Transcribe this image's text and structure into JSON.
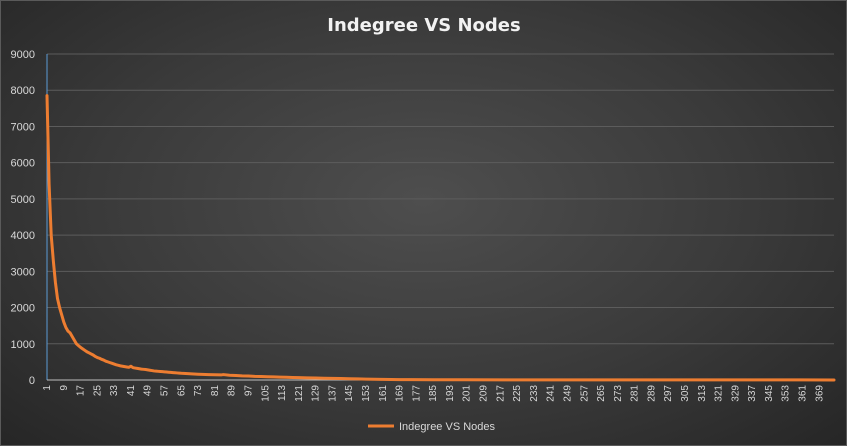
{
  "chart_data": {
    "type": "line",
    "title": "Indegree VS Nodes",
    "xlabel": "",
    "ylabel": "",
    "ylim": [
      0,
      9000
    ],
    "yticks": [
      0,
      1000,
      2000,
      3000,
      4000,
      5000,
      6000,
      7000,
      8000,
      9000
    ],
    "x_range": [
      1,
      376
    ],
    "xtick_start": 1,
    "xtick_step": 8,
    "grid": true,
    "legend": "bottom",
    "series": [
      {
        "name": "Indegree VS Nodes",
        "color": "#ed7d31",
        "points": [
          [
            1,
            7850
          ],
          [
            2,
            5400
          ],
          [
            3,
            4000
          ],
          [
            4,
            3300
          ],
          [
            5,
            2700
          ],
          [
            6,
            2250
          ],
          [
            7,
            2000
          ],
          [
            8,
            1800
          ],
          [
            9,
            1600
          ],
          [
            10,
            1450
          ],
          [
            11,
            1350
          ],
          [
            12,
            1300
          ],
          [
            13,
            1200
          ],
          [
            14,
            1100
          ],
          [
            15,
            1000
          ],
          [
            16,
            950
          ],
          [
            17,
            900
          ],
          [
            18,
            860
          ],
          [
            19,
            820
          ],
          [
            20,
            780
          ],
          [
            21,
            750
          ],
          [
            22,
            720
          ],
          [
            23,
            690
          ],
          [
            24,
            650
          ],
          [
            25,
            620
          ],
          [
            26,
            600
          ],
          [
            27,
            570
          ],
          [
            28,
            550
          ],
          [
            29,
            520
          ],
          [
            30,
            500
          ],
          [
            31,
            480
          ],
          [
            32,
            460
          ],
          [
            33,
            440
          ],
          [
            34,
            420
          ],
          [
            35,
            405
          ],
          [
            36,
            390
          ],
          [
            37,
            380
          ],
          [
            38,
            370
          ],
          [
            39,
            360
          ],
          [
            40,
            350
          ],
          [
            41,
            380
          ],
          [
            42,
            340
          ],
          [
            43,
            330
          ],
          [
            44,
            320
          ],
          [
            45,
            310
          ],
          [
            46,
            300
          ],
          [
            47,
            295
          ],
          [
            48,
            290
          ],
          [
            49,
            280
          ],
          [
            50,
            270
          ],
          [
            51,
            260
          ],
          [
            52,
            250
          ],
          [
            53,
            245
          ],
          [
            54,
            240
          ],
          [
            55,
            235
          ],
          [
            56,
            230
          ],
          [
            57,
            225
          ],
          [
            58,
            220
          ],
          [
            59,
            215
          ],
          [
            60,
            210
          ],
          [
            61,
            205
          ],
          [
            62,
            200
          ],
          [
            63,
            195
          ],
          [
            64,
            190
          ],
          [
            65,
            185
          ],
          [
            67,
            178
          ],
          [
            70,
            170
          ],
          [
            73,
            160
          ],
          [
            75,
            155
          ],
          [
            78,
            150
          ],
          [
            81,
            145
          ],
          [
            84,
            140
          ],
          [
            85,
            150
          ],
          [
            88,
            130
          ],
          [
            91,
            125
          ],
          [
            94,
            115
          ],
          [
            97,
            110
          ],
          [
            100,
            100
          ],
          [
            103,
            95
          ],
          [
            106,
            90
          ],
          [
            109,
            85
          ],
          [
            112,
            80
          ],
          [
            115,
            75
          ],
          [
            118,
            70
          ],
          [
            121,
            65
          ],
          [
            125,
            60
          ],
          [
            129,
            55
          ],
          [
            133,
            50
          ],
          [
            137,
            45
          ],
          [
            141,
            40
          ],
          [
            145,
            35
          ],
          [
            149,
            30
          ],
          [
            153,
            25
          ],
          [
            157,
            20
          ],
          [
            161,
            18
          ],
          [
            165,
            15
          ],
          [
            169,
            12
          ],
          [
            175,
            10
          ],
          [
            185,
            8
          ],
          [
            200,
            6
          ],
          [
            220,
            5
          ],
          [
            250,
            4
          ],
          [
            280,
            3
          ],
          [
            310,
            3
          ],
          [
            340,
            2
          ],
          [
            360,
            2
          ],
          [
            376,
            1
          ]
        ]
      }
    ]
  }
}
